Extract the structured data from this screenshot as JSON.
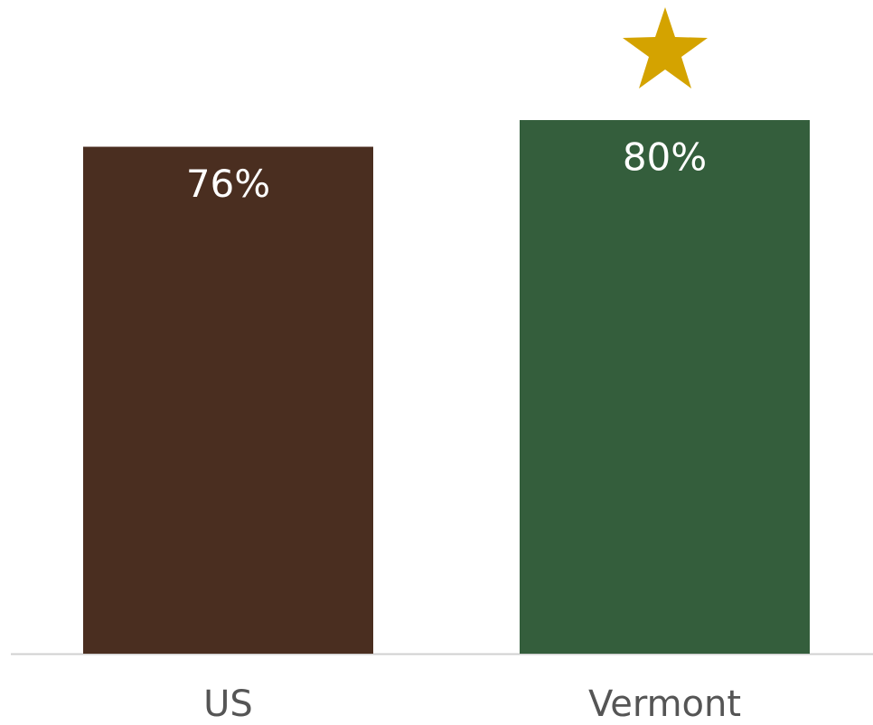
{
  "chart_data": {
    "type": "bar",
    "categories": [
      "US",
      "Vermont"
    ],
    "values": [
      76,
      80
    ],
    "value_labels": [
      "76%",
      "80%"
    ],
    "colors": [
      "#4a2e20",
      "#345e3c"
    ],
    "ylim": [
      0,
      98
    ]
  }
}
